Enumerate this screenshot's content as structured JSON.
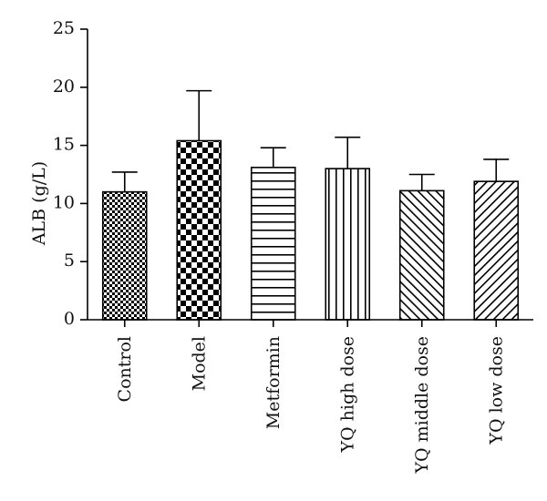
{
  "chart_data": {
    "type": "bar",
    "title": "",
    "xlabel": "",
    "ylabel": "ALB (g/L)",
    "ylim": [
      0,
      25
    ],
    "yticks": [
      0,
      5,
      10,
      15,
      20,
      25
    ],
    "grid": false,
    "legend": "none",
    "categories": [
      "Control",
      "Model",
      "Metformin",
      "YQ high dose",
      "YQ middle dose",
      "YQ low dose"
    ],
    "values": [
      11.0,
      15.4,
      13.1,
      13.0,
      11.1,
      11.9
    ],
    "error_upper": [
      12.7,
      19.7,
      14.8,
      15.7,
      12.5,
      13.8
    ],
    "patterns": [
      "checker-small",
      "checker-large",
      "horizontal-lines",
      "vertical-lines",
      "diagonal-forward",
      "diagonal-back"
    ],
    "colors": {
      "bar_fill": "#ffffff",
      "pattern": "#000000",
      "axis": "#000000"
    }
  }
}
